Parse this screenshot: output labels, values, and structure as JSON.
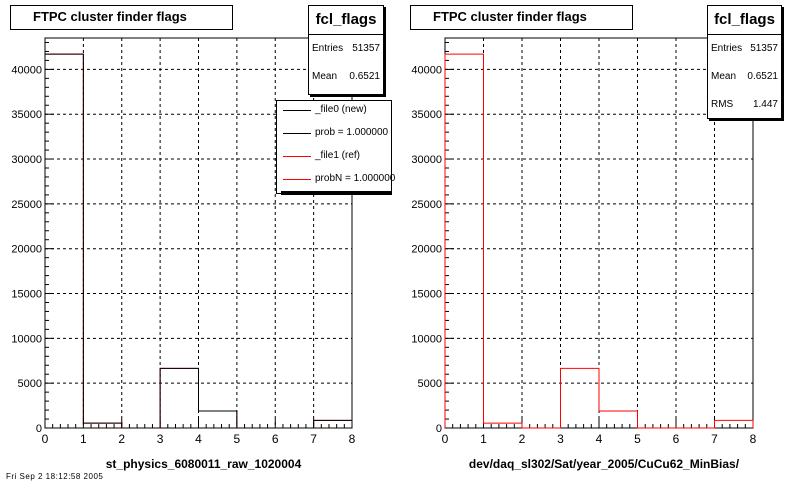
{
  "panels": [
    {
      "title": "FTPC cluster finder flags",
      "stats": {
        "name": "fcl_flags",
        "rows": [
          {
            "key": "Entries",
            "value": "51357"
          },
          {
            "key": "Mean",
            "value": "0.6521"
          }
        ]
      },
      "xlabel": "st_physics_6080011_raw_1020004"
    },
    {
      "title": "FTPC cluster finder flags",
      "stats": {
        "name": "fcl_flags",
        "rows": [
          {
            "key": "Entries",
            "value": "51357"
          },
          {
            "key": "Mean",
            "value": "0.6521"
          },
          {
            "key": "RMS",
            "value": "1.447"
          }
        ]
      },
      "xlabel": "dev/daq_sl302/Sat/year_2005/CuCu62_MinBias/"
    }
  ],
  "legend": {
    "items": [
      {
        "label": "_file0 (new)",
        "color": "#000000"
      },
      {
        "label": "prob = 1.000000",
        "color": "#000000"
      },
      {
        "label": "_file1 (ref)",
        "color": "#ff0000"
      },
      {
        "label": "probN = 1.000000",
        "color": "#ff0000"
      }
    ]
  },
  "footer": "Fri Sep 2 18:12:58 2005",
  "colors": {
    "new": "#000000",
    "ref": "#ff0000",
    "grid": "#000000"
  },
  "chart_data": [
    {
      "type": "bar",
      "histogram": true,
      "title": "FTPC cluster finder flags",
      "xlabel": "st_physics_6080011_raw_1020004",
      "ylabel": "",
      "xlim": [
        0,
        8
      ],
      "ylim": [
        0,
        43500
      ],
      "grid": true,
      "x_ticks": [
        0,
        1,
        2,
        3,
        4,
        5,
        6,
        7,
        8
      ],
      "y_ticks": [
        0,
        5000,
        10000,
        15000,
        20000,
        25000,
        30000,
        35000,
        40000
      ],
      "bin_edges": [
        0,
        1,
        2,
        3,
        4,
        5,
        6,
        7,
        8
      ],
      "series": [
        {
          "name": "_file1 (ref)",
          "values": [
            41700,
            550,
            0,
            6650,
            1900,
            0,
            0,
            850
          ]
        },
        {
          "name": "_file0 (new)",
          "values": [
            41700,
            550,
            0,
            6650,
            1900,
            0,
            0,
            850
          ]
        }
      ],
      "legend": "top-right"
    },
    {
      "type": "bar",
      "histogram": true,
      "title": "FTPC cluster finder flags",
      "xlabel": "dev/daq_sl302/Sat/year_2005/CuCu62_MinBias/",
      "ylabel": "",
      "xlim": [
        0,
        8
      ],
      "ylim": [
        0,
        43500
      ],
      "grid": true,
      "x_ticks": [
        0,
        1,
        2,
        3,
        4,
        5,
        6,
        7,
        8
      ],
      "y_ticks": [
        0,
        5000,
        10000,
        15000,
        20000,
        25000,
        30000,
        35000,
        40000
      ],
      "bin_edges": [
        0,
        1,
        2,
        3,
        4,
        5,
        6,
        7,
        8
      ],
      "series": [
        {
          "name": "_file1 (ref)",
          "values": [
            41700,
            550,
            0,
            6650,
            1900,
            0,
            0,
            850
          ]
        }
      ]
    }
  ]
}
